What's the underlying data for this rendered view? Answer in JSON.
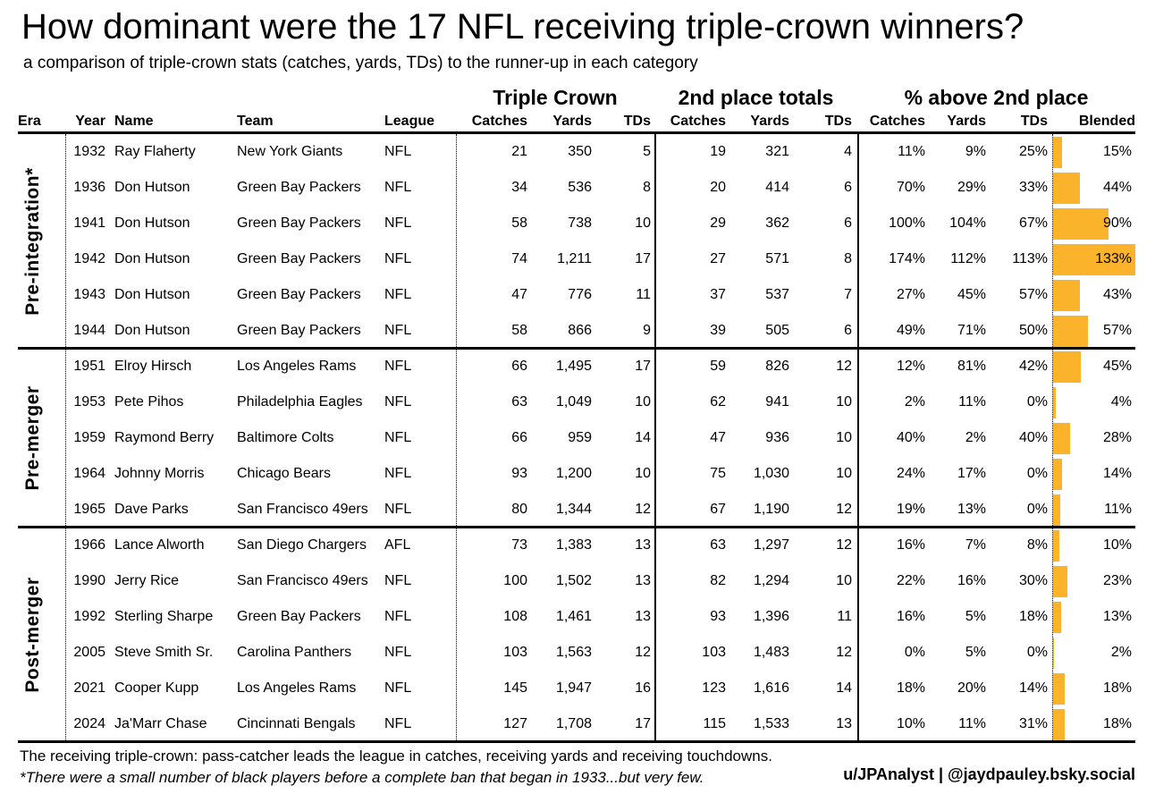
{
  "title": "How dominant were the 17 NFL receiving triple-crown winners?",
  "subtitle": "a comparison of triple-crown stats (catches, yards, TDs) to the runner-up in each category",
  "header_groups": {
    "triple_crown": "Triple Crown",
    "second_place": "2nd place totals",
    "pct_above": "% above 2nd place"
  },
  "columns": {
    "era": "Era",
    "year": "Year",
    "name": "Name",
    "team": "Team",
    "league": "League",
    "catches": "Catches",
    "yards": "Yards",
    "tds": "TDs",
    "blended": "Blended"
  },
  "chart_data": {
    "type": "table",
    "bar_column": "Blended",
    "bar_color": "#FCB32C",
    "blended_axis_max_pct": 133,
    "groups": [
      {
        "era_label": "Pre-integration*",
        "rows": [
          {
            "year": "1932",
            "name": "Ray Flaherty",
            "team": "New York Giants",
            "league": "NFL",
            "triple_crown": {
              "catches": "21",
              "yards": "350",
              "tds": "5"
            },
            "second_place": {
              "catches": "19",
              "yards": "321",
              "tds": "4"
            },
            "pct_above": {
              "catches": "11%",
              "yards": "9%",
              "tds": "25%"
            },
            "blended": "15%",
            "blended_value": 15
          },
          {
            "year": "1936",
            "name": "Don Hutson",
            "team": "Green Bay Packers",
            "league": "NFL",
            "triple_crown": {
              "catches": "34",
              "yards": "536",
              "tds": "8"
            },
            "second_place": {
              "catches": "20",
              "yards": "414",
              "tds": "6"
            },
            "pct_above": {
              "catches": "70%",
              "yards": "29%",
              "tds": "33%"
            },
            "blended": "44%",
            "blended_value": 44
          },
          {
            "year": "1941",
            "name": "Don Hutson",
            "team": "Green Bay Packers",
            "league": "NFL",
            "triple_crown": {
              "catches": "58",
              "yards": "738",
              "tds": "10"
            },
            "second_place": {
              "catches": "29",
              "yards": "362",
              "tds": "6"
            },
            "pct_above": {
              "catches": "100%",
              "yards": "104%",
              "tds": "67%"
            },
            "blended": "90%",
            "blended_value": 90
          },
          {
            "year": "1942",
            "name": "Don Hutson",
            "team": "Green Bay Packers",
            "league": "NFL",
            "triple_crown": {
              "catches": "74",
              "yards": "1,211",
              "tds": "17"
            },
            "second_place": {
              "catches": "27",
              "yards": "571",
              "tds": "8"
            },
            "pct_above": {
              "catches": "174%",
              "yards": "112%",
              "tds": "113%"
            },
            "blended": "133%",
            "blended_value": 133
          },
          {
            "year": "1943",
            "name": "Don Hutson",
            "team": "Green Bay Packers",
            "league": "NFL",
            "triple_crown": {
              "catches": "47",
              "yards": "776",
              "tds": "11"
            },
            "second_place": {
              "catches": "37",
              "yards": "537",
              "tds": "7"
            },
            "pct_above": {
              "catches": "27%",
              "yards": "45%",
              "tds": "57%"
            },
            "blended": "43%",
            "blended_value": 43
          },
          {
            "year": "1944",
            "name": "Don Hutson",
            "team": "Green Bay Packers",
            "league": "NFL",
            "triple_crown": {
              "catches": "58",
              "yards": "866",
              "tds": "9"
            },
            "second_place": {
              "catches": "39",
              "yards": "505",
              "tds": "6"
            },
            "pct_above": {
              "catches": "49%",
              "yards": "71%",
              "tds": "50%"
            },
            "blended": "57%",
            "blended_value": 57
          }
        ]
      },
      {
        "era_label": "Pre-merger",
        "rows": [
          {
            "year": "1951",
            "name": "Elroy Hirsch",
            "team": "Los Angeles Rams",
            "league": "NFL",
            "triple_crown": {
              "catches": "66",
              "yards": "1,495",
              "tds": "17"
            },
            "second_place": {
              "catches": "59",
              "yards": "826",
              "tds": "12"
            },
            "pct_above": {
              "catches": "12%",
              "yards": "81%",
              "tds": "42%"
            },
            "blended": "45%",
            "blended_value": 45
          },
          {
            "year": "1953",
            "name": "Pete Pihos",
            "team": "Philadelphia Eagles",
            "league": "NFL",
            "triple_crown": {
              "catches": "63",
              "yards": "1,049",
              "tds": "10"
            },
            "second_place": {
              "catches": "62",
              "yards": "941",
              "tds": "10"
            },
            "pct_above": {
              "catches": "2%",
              "yards": "11%",
              "tds": "0%"
            },
            "blended": "4%",
            "blended_value": 4
          },
          {
            "year": "1959",
            "name": "Raymond Berry",
            "team": "Baltimore Colts",
            "league": "NFL",
            "triple_crown": {
              "catches": "66",
              "yards": "959",
              "tds": "14"
            },
            "second_place": {
              "catches": "47",
              "yards": "936",
              "tds": "10"
            },
            "pct_above": {
              "catches": "40%",
              "yards": "2%",
              "tds": "40%"
            },
            "blended": "28%",
            "blended_value": 28
          },
          {
            "year": "1964",
            "name": "Johnny Morris",
            "team": "Chicago Bears",
            "league": "NFL",
            "triple_crown": {
              "catches": "93",
              "yards": "1,200",
              "tds": "10"
            },
            "second_place": {
              "catches": "75",
              "yards": "1,030",
              "tds": "10"
            },
            "pct_above": {
              "catches": "24%",
              "yards": "17%",
              "tds": "0%"
            },
            "blended": "14%",
            "blended_value": 14
          },
          {
            "year": "1965",
            "name": "Dave Parks",
            "team": "San Francisco 49ers",
            "league": "NFL",
            "triple_crown": {
              "catches": "80",
              "yards": "1,344",
              "tds": "12"
            },
            "second_place": {
              "catches": "67",
              "yards": "1,190",
              "tds": "12"
            },
            "pct_above": {
              "catches": "19%",
              "yards": "13%",
              "tds": "0%"
            },
            "blended": "11%",
            "blended_value": 11
          }
        ]
      },
      {
        "era_label": "Post-merger",
        "rows": [
          {
            "year": "1966",
            "name": "Lance Alworth",
            "team": "San Diego Chargers",
            "league": "AFL",
            "triple_crown": {
              "catches": "73",
              "yards": "1,383",
              "tds": "13"
            },
            "second_place": {
              "catches": "63",
              "yards": "1,297",
              "tds": "12"
            },
            "pct_above": {
              "catches": "16%",
              "yards": "7%",
              "tds": "8%"
            },
            "blended": "10%",
            "blended_value": 10
          },
          {
            "year": "1990",
            "name": "Jerry Rice",
            "team": "San Francisco 49ers",
            "league": "NFL",
            "triple_crown": {
              "catches": "100",
              "yards": "1,502",
              "tds": "13"
            },
            "second_place": {
              "catches": "82",
              "yards": "1,294",
              "tds": "10"
            },
            "pct_above": {
              "catches": "22%",
              "yards": "16%",
              "tds": "30%"
            },
            "blended": "23%",
            "blended_value": 23
          },
          {
            "year": "1992",
            "name": "Sterling Sharpe",
            "team": "Green Bay Packers",
            "league": "NFL",
            "triple_crown": {
              "catches": "108",
              "yards": "1,461",
              "tds": "13"
            },
            "second_place": {
              "catches": "93",
              "yards": "1,396",
              "tds": "11"
            },
            "pct_above": {
              "catches": "16%",
              "yards": "5%",
              "tds": "18%"
            },
            "blended": "13%",
            "blended_value": 13
          },
          {
            "year": "2005",
            "name": "Steve Smith Sr.",
            "team": "Carolina Panthers",
            "league": "NFL",
            "triple_crown": {
              "catches": "103",
              "yards": "1,563",
              "tds": "12"
            },
            "second_place": {
              "catches": "103",
              "yards": "1,483",
              "tds": "12"
            },
            "pct_above": {
              "catches": "0%",
              "yards": "5%",
              "tds": "0%"
            },
            "blended": "2%",
            "blended_value": 2
          },
          {
            "year": "2021",
            "name": "Cooper Kupp",
            "team": "Los Angeles Rams",
            "league": "NFL",
            "triple_crown": {
              "catches": "145",
              "yards": "1,947",
              "tds": "16"
            },
            "second_place": {
              "catches": "123",
              "yards": "1,616",
              "tds": "14"
            },
            "pct_above": {
              "catches": "18%",
              "yards": "20%",
              "tds": "14%"
            },
            "blended": "18%",
            "blended_value": 18
          },
          {
            "year": "2024",
            "name": "Ja'Marr Chase",
            "team": "Cincinnati Bengals",
            "league": "NFL",
            "triple_crown": {
              "catches": "127",
              "yards": "1,708",
              "tds": "17"
            },
            "second_place": {
              "catches": "115",
              "yards": "1,533",
              "tds": "13"
            },
            "pct_above": {
              "catches": "10%",
              "yards": "11%",
              "tds": "31%"
            },
            "blended": "18%",
            "blended_value": 18
          }
        ]
      }
    ]
  },
  "footer": {
    "definition": "The receiving triple-crown: pass-catcher leads the league in catches, receiving yards and receiving touchdowns.",
    "footnote": "*There were a small number of black players before a complete ban that began in 1933...but very few.",
    "credit": "u/JPAnalyst | @jaydpauley.bsky.social"
  }
}
